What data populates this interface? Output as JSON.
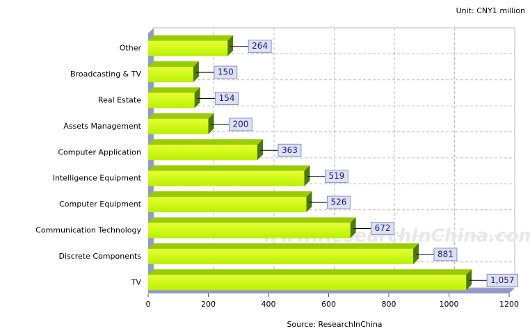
{
  "chart_data": {
    "type": "bar",
    "orientation": "horizontal",
    "annotation": "Unit: CNY1 million",
    "source": "Source: ResearchInChina",
    "watermark": "www.ResearchInChina.com",
    "categories": [
      "Other",
      "Broadcasting & TV",
      "Real Estate",
      "Assets Management",
      "Computer Application",
      "Intelligence Equipment",
      "Computer Equipment",
      "Communication Technology",
      "Discrete Components",
      "TV"
    ],
    "values": [
      264,
      150,
      154,
      200,
      363,
      519,
      526,
      672,
      881,
      1057
    ],
    "value_labels": [
      "264",
      "150",
      "154",
      "200",
      "363",
      "519",
      "526",
      "672",
      "881",
      "1,057"
    ],
    "color": "#ccff00",
    "xlim": [
      0,
      1200
    ],
    "xticks": [
      0,
      200,
      400,
      600,
      800,
      1000,
      1200
    ],
    "grid": true
  }
}
